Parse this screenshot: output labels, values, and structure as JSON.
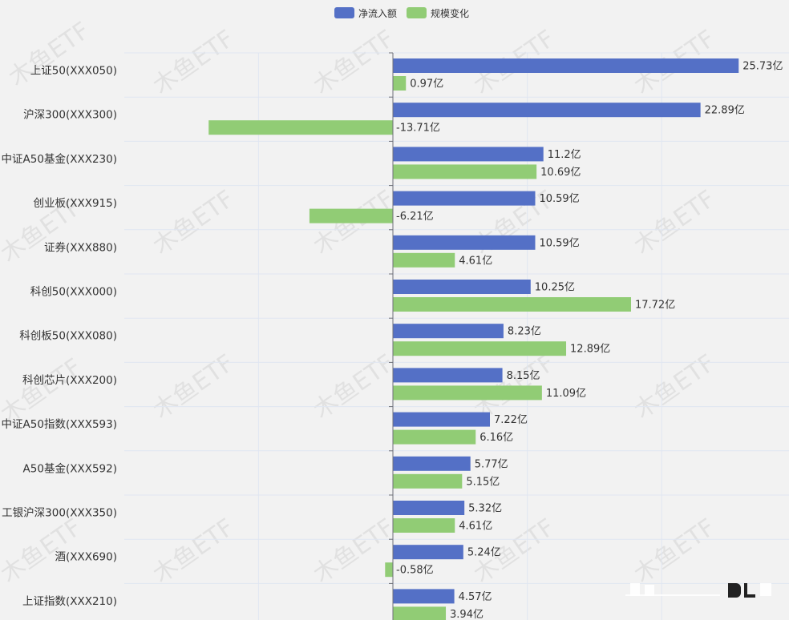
{
  "legend": {
    "net_inflow": "净流入额",
    "scale_change": "规模变化"
  },
  "colors": {
    "net_inflow": "#5470c6",
    "scale_change": "#91cc75",
    "axis": "#6e7079",
    "grid": "#e0e6f1",
    "label": "#333333"
  },
  "watermark": "木鱼ETF",
  "chart_data": {
    "type": "bar",
    "orientation": "horizontal",
    "unit_suffix": "亿",
    "categories": [
      "上证50(XXX050)",
      "沪深300(XXX300)",
      "中证A50基金(XXX230)",
      "创业板(XXX915)",
      "证券(XXX880)",
      "科创50(XXX000)",
      "科创板50(XXX080)",
      "科创芯片(XXX200)",
      "中证A50指数(XXX593)",
      "A50基金(XXX592)",
      "工银沪深300(XXX350)",
      "酒(XXX690)",
      "上证指数(XXX210)"
    ],
    "series": [
      {
        "name": "净流入额",
        "values": [
          25.73,
          22.89,
          11.2,
          10.59,
          10.59,
          10.25,
          8.23,
          8.15,
          7.22,
          5.77,
          5.32,
          5.24,
          4.57
        ],
        "labels": [
          "25.73亿",
          "22.89亿",
          "11.2亿",
          "10.59亿",
          "10.59亿",
          "10.25亿",
          "8.23亿",
          "8.15亿",
          "7.22亿",
          "5.77亿",
          "5.32亿",
          "5.24亿",
          "4.57亿"
        ]
      },
      {
        "name": "规模变化",
        "values": [
          0.97,
          -13.71,
          10.69,
          -6.21,
          4.61,
          17.72,
          12.89,
          11.09,
          6.16,
          5.15,
          4.61,
          -0.58,
          3.94
        ],
        "labels": [
          "0.97亿",
          "-13.71亿",
          "10.69亿",
          "-6.21亿",
          "4.61亿",
          "17.72亿",
          "12.89亿",
          "11.09亿",
          "6.16亿",
          "5.15亿",
          "4.61亿",
          "-0.58亿",
          "3.94亿"
        ]
      }
    ],
    "xlim": [
      -20,
      30
    ],
    "grid": true,
    "legend_position": "top-center"
  }
}
